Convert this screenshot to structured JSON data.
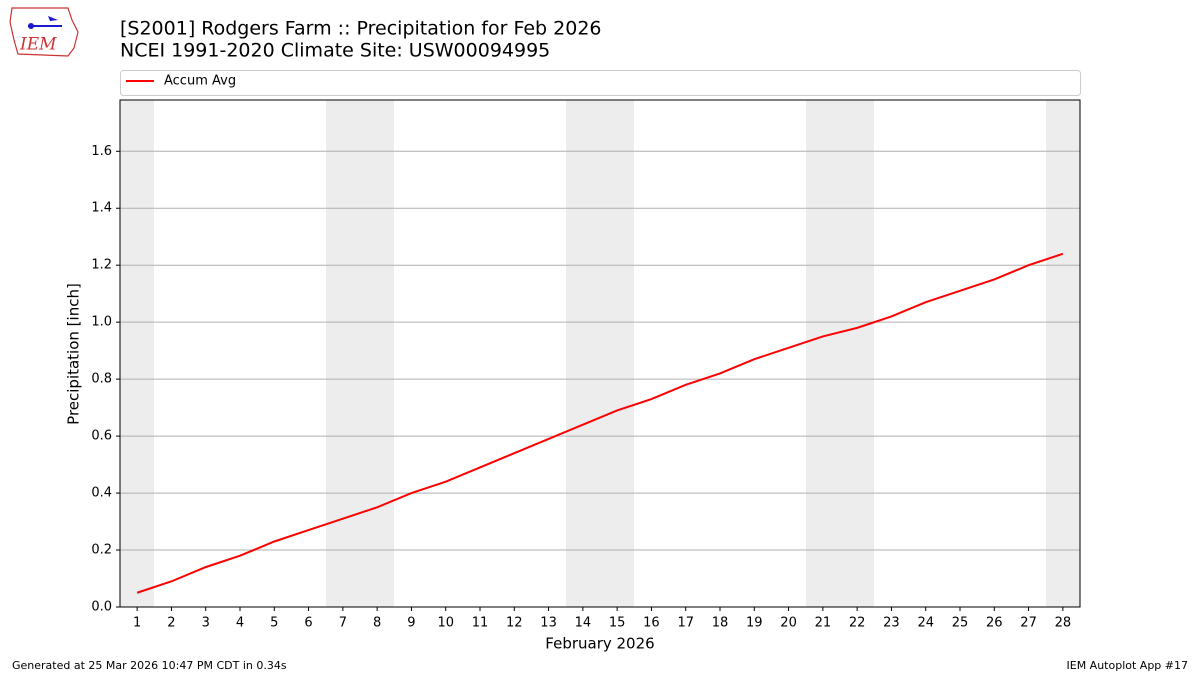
{
  "logo_text": "IEM",
  "footer_left": "Generated at 25 Mar 2026 10:47 PM CDT in 0.34s",
  "footer_right": "IEM Autoplot App #17",
  "chart_data": {
    "type": "line",
    "title": "[S2001] Rodgers Farm :: Precipitation for Feb 2026",
    "subtitle": "NCEI 1991-2020 Climate Site: USW00094995",
    "xlabel": "February 2026",
    "ylabel": "Precipitation [inch]",
    "x": [
      1,
      2,
      3,
      4,
      5,
      6,
      7,
      8,
      9,
      10,
      11,
      12,
      13,
      14,
      15,
      16,
      17,
      18,
      19,
      20,
      21,
      22,
      23,
      24,
      25,
      26,
      27,
      28
    ],
    "series": [
      {
        "name": "Accum Avg",
        "color": "#ff0000",
        "values": [
          0.05,
          0.09,
          0.14,
          0.18,
          0.23,
          0.27,
          0.31,
          0.35,
          0.4,
          0.44,
          0.49,
          0.54,
          0.59,
          0.64,
          0.69,
          0.73,
          0.78,
          0.82,
          0.87,
          0.91,
          0.95,
          0.98,
          1.02,
          1.07,
          1.11,
          1.15,
          1.2,
          1.24
        ]
      }
    ],
    "xlim": [
      0.5,
      28.5
    ],
    "ylim": [
      0,
      1.78
    ],
    "xticks": [
      1,
      2,
      3,
      4,
      5,
      6,
      7,
      8,
      9,
      10,
      11,
      12,
      13,
      14,
      15,
      16,
      17,
      18,
      19,
      20,
      21,
      22,
      23,
      24,
      25,
      26,
      27,
      28
    ],
    "yticks": [
      {
        "value": 0,
        "label": "0.0"
      },
      {
        "value": 0.2,
        "label": "0.2"
      },
      {
        "value": 0.4,
        "label": "0.4"
      },
      {
        "value": 0.6,
        "label": "0.6"
      },
      {
        "value": 0.8,
        "label": "0.8"
      },
      {
        "value": 1.0,
        "label": "1.0"
      },
      {
        "value": 1.2,
        "label": "1.2"
      },
      {
        "value": 1.4,
        "label": "1.4"
      },
      {
        "value": 1.6,
        "label": "1.6"
      }
    ],
    "grid": true,
    "legend": "top"
  }
}
